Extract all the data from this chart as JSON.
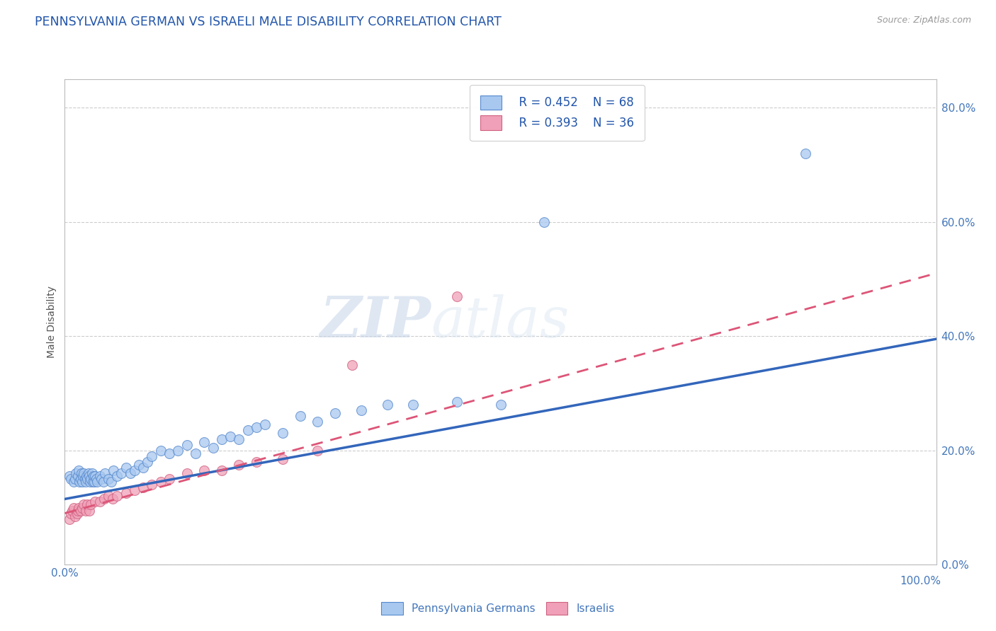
{
  "title": "PENNSYLVANIA GERMAN VS ISRAELI MALE DISABILITY CORRELATION CHART",
  "source": "Source: ZipAtlas.com",
  "ylabel": "Male Disability",
  "legend_labels": [
    "Pennsylvania Germans",
    "Israelis"
  ],
  "legend_r": [
    "R = 0.452",
    "R = 0.393"
  ],
  "legend_n": [
    "N = 68",
    "N = 36"
  ],
  "watermark_zip": "ZIP",
  "watermark_atlas": "atlas",
  "blue_color": "#A8C8F0",
  "pink_color": "#F0A0B8",
  "blue_edge_color": "#5588CC",
  "pink_edge_color": "#D06080",
  "blue_line_color": "#3366BB",
  "pink_line_color": "#DD5577",
  "title_color": "#2255AA",
  "axis_tick_color": "#4477BB",
  "bg_color": "#FFFFFF",
  "grid_color": "#CCCCCC",
  "pa_german_x": [
    0.005,
    0.007,
    0.01,
    0.012,
    0.013,
    0.015,
    0.016,
    0.017,
    0.018,
    0.019,
    0.02,
    0.021,
    0.022,
    0.023,
    0.024,
    0.025,
    0.026,
    0.027,
    0.028,
    0.029,
    0.03,
    0.031,
    0.032,
    0.033,
    0.034,
    0.035,
    0.036,
    0.037,
    0.04,
    0.042,
    0.044,
    0.046,
    0.05,
    0.053,
    0.056,
    0.06,
    0.065,
    0.07,
    0.075,
    0.08,
    0.085,
    0.09,
    0.095,
    0.1,
    0.11,
    0.12,
    0.13,
    0.14,
    0.15,
    0.16,
    0.17,
    0.18,
    0.19,
    0.2,
    0.21,
    0.22,
    0.23,
    0.25,
    0.27,
    0.29,
    0.31,
    0.34,
    0.37,
    0.4,
    0.45,
    0.5,
    0.55,
    0.85
  ],
  "pa_german_y": [
    0.155,
    0.15,
    0.145,
    0.15,
    0.16,
    0.155,
    0.165,
    0.145,
    0.15,
    0.16,
    0.145,
    0.155,
    0.16,
    0.15,
    0.145,
    0.155,
    0.15,
    0.16,
    0.155,
    0.145,
    0.15,
    0.16,
    0.145,
    0.155,
    0.145,
    0.155,
    0.15,
    0.145,
    0.155,
    0.15,
    0.145,
    0.16,
    0.15,
    0.145,
    0.165,
    0.155,
    0.16,
    0.17,
    0.16,
    0.165,
    0.175,
    0.17,
    0.18,
    0.19,
    0.2,
    0.195,
    0.2,
    0.21,
    0.195,
    0.215,
    0.205,
    0.22,
    0.225,
    0.22,
    0.235,
    0.24,
    0.245,
    0.23,
    0.26,
    0.25,
    0.265,
    0.27,
    0.28,
    0.28,
    0.285,
    0.28,
    0.6,
    0.72
  ],
  "israeli_x": [
    0.005,
    0.007,
    0.009,
    0.01,
    0.012,
    0.014,
    0.015,
    0.016,
    0.018,
    0.02,
    0.022,
    0.024,
    0.026,
    0.028,
    0.03,
    0.035,
    0.04,
    0.045,
    0.05,
    0.055,
    0.06,
    0.07,
    0.08,
    0.09,
    0.1,
    0.11,
    0.12,
    0.14,
    0.16,
    0.18,
    0.2,
    0.22,
    0.25,
    0.29,
    0.33,
    0.45
  ],
  "israeli_y": [
    0.08,
    0.09,
    0.095,
    0.1,
    0.085,
    0.09,
    0.095,
    0.1,
    0.095,
    0.1,
    0.105,
    0.095,
    0.105,
    0.095,
    0.105,
    0.11,
    0.11,
    0.115,
    0.12,
    0.115,
    0.12,
    0.125,
    0.13,
    0.135,
    0.14,
    0.145,
    0.15,
    0.16,
    0.165,
    0.165,
    0.175,
    0.18,
    0.185,
    0.2,
    0.35,
    0.47
  ],
  "pa_trendline": [
    0.0,
    1.0,
    0.115,
    0.395
  ],
  "is_trendline": [
    0.0,
    1.0,
    0.09,
    0.51
  ],
  "xmin": 0.0,
  "xmax": 1.0,
  "ymin": 0.0,
  "ymax": 0.85,
  "yticks": [
    0.0,
    0.2,
    0.4,
    0.6,
    0.8
  ]
}
